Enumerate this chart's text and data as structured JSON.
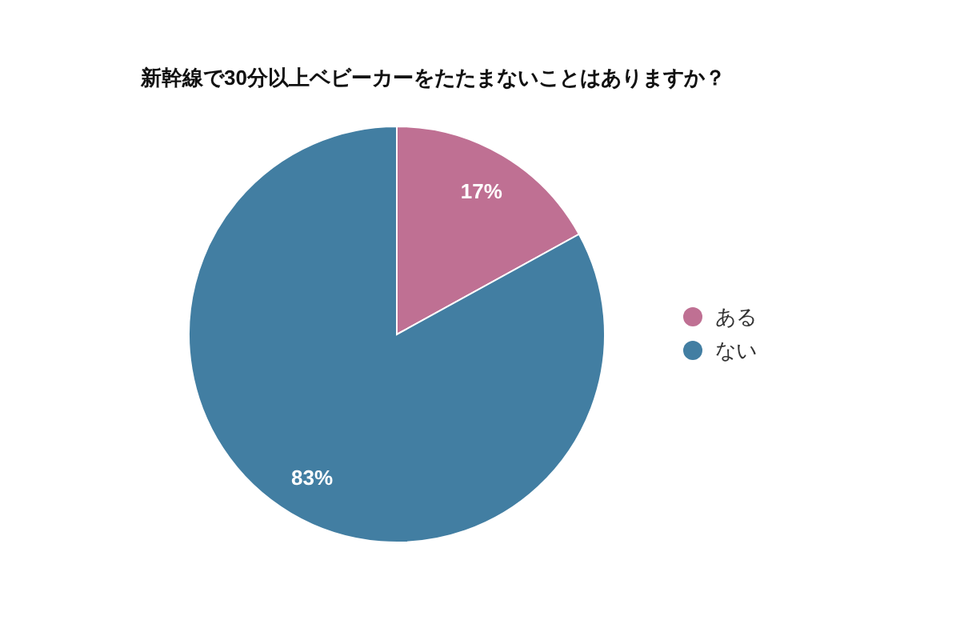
{
  "chart_data": {
    "type": "pie",
    "title": "新幹線で30分以上ベビーカーをたたまないことはありますか？",
    "categories": [
      "ある",
      "ない"
    ],
    "values": [
      17,
      83
    ],
    "colors": [
      "#bf7093",
      "#427ea2"
    ],
    "value_labels": [
      "17%",
      "83%"
    ],
    "legend": "right"
  }
}
